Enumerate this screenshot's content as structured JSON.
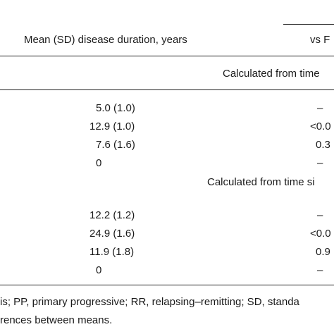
{
  "header": {
    "col_duration": "Mean (SD) disease duration, years",
    "col_vs": "vs F"
  },
  "sections": [
    {
      "label": "Calculated from time",
      "rows": [
        {
          "value": "5.0 (1.0)",
          "p": "–"
        },
        {
          "value": "12.9 (1.0)",
          "p": "<0.0"
        },
        {
          "value": "7.6 (1.6)",
          "p": "0.3"
        },
        {
          "value": "0",
          "p": "–"
        }
      ]
    },
    {
      "label": "Calculated from time si",
      "rows": [
        {
          "value": "12.2 (1.2)",
          "p": "–"
        },
        {
          "value": "24.9 (1.6)",
          "p": "<0.0"
        },
        {
          "value": "11.9 (1.8)",
          "p": "0.9"
        },
        {
          "value": "0",
          "p": "–"
        }
      ]
    }
  ],
  "footnotes": {
    "line1": "is; PP, primary progressive; RR, relapsing–remitting; SD, standa",
    "line2": "rences between means."
  }
}
